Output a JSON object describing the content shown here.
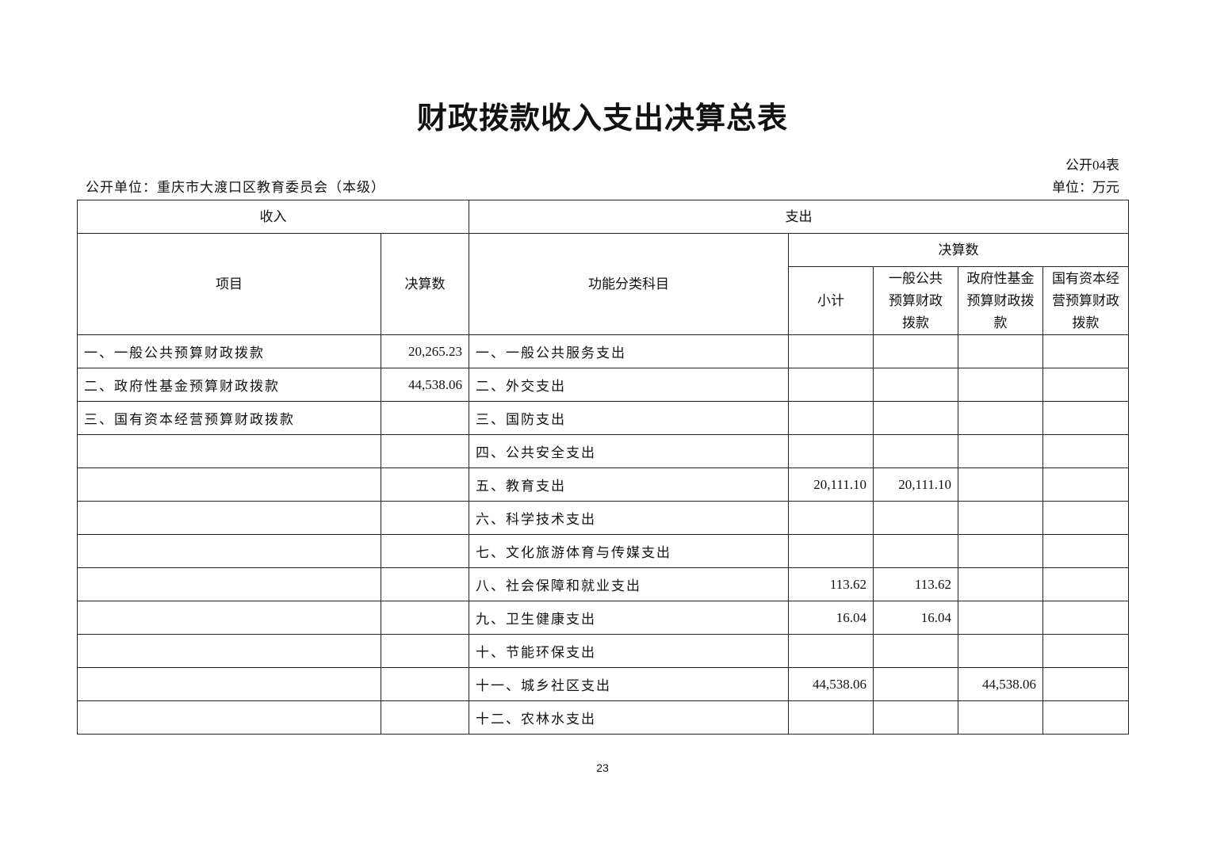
{
  "title": "财政拨款收入支出决算总表",
  "form_no": "公开04表",
  "unit_org": "公开单位：重庆市大渡口区教育委员会（本级）",
  "unit_currency": "单位：万元",
  "headers": {
    "income": "收入",
    "expense": "支出",
    "item": "项目",
    "amount": "决算数",
    "func_class": "功能分类科目",
    "final_amount": "决算数",
    "subtotal": "小计",
    "general_budget": "一般公共预算财政拨款",
    "gov_fund": "政府性基金预算财政拨款",
    "state_capital": "国有资本经营预算财政拨款"
  },
  "rows": [
    {
      "income_item": "一、一般公共预算财政拨款",
      "income_amount": "20,265.23",
      "expense_item": "一、一般公共服务支出",
      "subtotal": "",
      "general": "",
      "fund": "",
      "capital": ""
    },
    {
      "income_item": "二、政府性基金预算财政拨款",
      "income_amount": "44,538.06",
      "expense_item": "二、外交支出",
      "subtotal": "",
      "general": "",
      "fund": "",
      "capital": ""
    },
    {
      "income_item": "三、国有资本经营预算财政拨款",
      "income_amount": "",
      "expense_item": "三、国防支出",
      "subtotal": "",
      "general": "",
      "fund": "",
      "capital": ""
    },
    {
      "income_item": "",
      "income_amount": "",
      "expense_item": "四、公共安全支出",
      "subtotal": "",
      "general": "",
      "fund": "",
      "capital": ""
    },
    {
      "income_item": "",
      "income_amount": "",
      "expense_item": "五、教育支出",
      "subtotal": "20,111.10",
      "general": "20,111.10",
      "fund": "",
      "capital": ""
    },
    {
      "income_item": "",
      "income_amount": "",
      "expense_item": "六、科学技术支出",
      "subtotal": "",
      "general": "",
      "fund": "",
      "capital": ""
    },
    {
      "income_item": "",
      "income_amount": "",
      "expense_item": "七、文化旅游体育与传媒支出",
      "subtotal": "",
      "general": "",
      "fund": "",
      "capital": ""
    },
    {
      "income_item": "",
      "income_amount": "",
      "expense_item": "八、社会保障和就业支出",
      "subtotal": "113.62",
      "general": "113.62",
      "fund": "",
      "capital": ""
    },
    {
      "income_item": "",
      "income_amount": "",
      "expense_item": "九、卫生健康支出",
      "subtotal": "16.04",
      "general": "16.04",
      "fund": "",
      "capital": ""
    },
    {
      "income_item": "",
      "income_amount": "",
      "expense_item": "十、节能环保支出",
      "subtotal": "",
      "general": "",
      "fund": "",
      "capital": ""
    },
    {
      "income_item": "",
      "income_amount": "",
      "expense_item": "十一、城乡社区支出",
      "subtotal": "44,538.06",
      "general": "",
      "fund": "44,538.06",
      "capital": ""
    },
    {
      "income_item": "",
      "income_amount": "",
      "expense_item": "十二、农林水支出",
      "subtotal": "",
      "general": "",
      "fund": "",
      "capital": ""
    }
  ],
  "page_number": "23"
}
